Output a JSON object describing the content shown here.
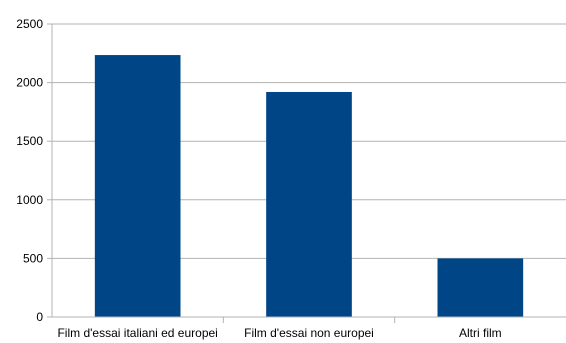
{
  "chart_data": {
    "type": "bar",
    "title": "",
    "xlabel": "",
    "ylabel": "",
    "categories": [
      "Film d'essai italiani ed europei",
      "Film d'essai non europei",
      "Altri film"
    ],
    "values": [
      2235,
      1920,
      500
    ],
    "ylim": [
      0,
      2500
    ],
    "yticks": [
      0,
      500,
      1000,
      1500,
      2000,
      2500
    ],
    "grid": true,
    "legend": "none",
    "bar_color": "#004586",
    "grid_color": "#b3b3b3",
    "axis_color": "#b3b3b3"
  }
}
